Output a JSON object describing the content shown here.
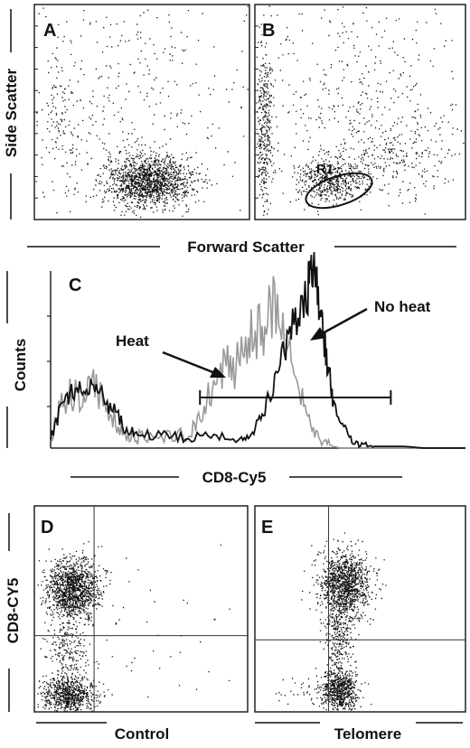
{
  "chart_data": [
    {
      "panel": "A",
      "type": "scatter",
      "ylabel": "Side Scatter",
      "xlabel": "Forward Scatter",
      "populations": [
        {
          "center": [
            0.53,
            0.18
          ],
          "spread": [
            0.1,
            0.06
          ],
          "count": 1400
        },
        {
          "center": [
            0.45,
            0.55
          ],
          "spread": [
            0.3,
            0.28
          ],
          "count": 420
        },
        {
          "center": [
            0.12,
            0.45
          ],
          "spread": [
            0.04,
            0.15
          ],
          "count": 90
        }
      ]
    },
    {
      "panel": "B",
      "type": "scatter",
      "gate_label": "R1",
      "populations": [
        {
          "center": [
            0.35,
            0.18
          ],
          "spread": [
            0.08,
            0.05
          ],
          "count": 500
        },
        {
          "center": [
            0.04,
            0.4
          ],
          "spread": [
            0.02,
            0.18
          ],
          "count": 350
        },
        {
          "center": [
            0.65,
            0.3
          ],
          "spread": [
            0.14,
            0.1
          ],
          "count": 260
        },
        {
          "center": [
            0.45,
            0.6
          ],
          "spread": [
            0.3,
            0.25
          ],
          "count": 420
        }
      ]
    },
    {
      "panel": "C",
      "type": "line",
      "ylabel": "Counts",
      "xlabel": "CD8-Cy5",
      "xlim": [
        0,
        100
      ],
      "ylim": [
        0,
        100
      ],
      "series": [
        {
          "name": "No heat",
          "color": "#111111",
          "x": [
            0,
            2,
            4,
            6,
            8,
            10,
            12,
            14,
            16,
            18,
            20,
            22,
            26,
            30,
            34,
            38,
            42,
            46,
            48,
            50,
            52,
            54,
            56,
            58,
            60,
            62,
            63,
            64,
            65,
            66,
            67,
            68,
            70,
            72,
            74,
            76,
            78,
            80,
            85,
            90,
            100
          ],
          "y": [
            5,
            20,
            28,
            35,
            30,
            40,
            32,
            25,
            20,
            10,
            9,
            8,
            8,
            7,
            6,
            7,
            6,
            5,
            8,
            15,
            25,
            38,
            55,
            68,
            80,
            92,
            100,
            96,
            80,
            60,
            45,
            30,
            15,
            6,
            3,
            2,
            1,
            1,
            1,
            0,
            0
          ]
        },
        {
          "name": "Heat",
          "color": "#999999",
          "x": [
            0,
            2,
            4,
            6,
            8,
            10,
            12,
            14,
            16,
            18,
            20,
            22,
            26,
            30,
            34,
            36,
            38,
            40,
            42,
            44,
            46,
            48,
            50,
            52,
            54,
            56,
            58,
            60,
            62,
            64,
            66,
            68,
            70,
            100
          ],
          "y": [
            5,
            22,
            30,
            32,
            28,
            38,
            30,
            22,
            15,
            8,
            7,
            6,
            6,
            6,
            10,
            20,
            30,
            38,
            50,
            45,
            55,
            62,
            68,
            72,
            88,
            70,
            55,
            35,
            15,
            6,
            2,
            1,
            0,
            0
          ]
        }
      ],
      "gate_range": [
        36,
        82
      ],
      "annotations": [
        "Heat",
        "No heat"
      ]
    },
    {
      "panel": "D",
      "type": "scatter",
      "ylabel": "CD8-CY5",
      "xlabel": "Control",
      "quadrant_lines": {
        "x": 0.28,
        "y": 0.37
      },
      "populations": [
        {
          "center": [
            0.18,
            0.6
          ],
          "spread": [
            0.06,
            0.07
          ],
          "count": 1300
        },
        {
          "center": [
            0.16,
            0.08
          ],
          "spread": [
            0.06,
            0.04
          ],
          "count": 700
        },
        {
          "center": [
            0.16,
            0.3
          ],
          "spread": [
            0.05,
            0.1
          ],
          "count": 260
        },
        {
          "center": [
            0.45,
            0.3
          ],
          "spread": [
            0.25,
            0.25
          ],
          "count": 60
        }
      ]
    },
    {
      "panel": "E",
      "type": "scatter",
      "xlabel": "Telomere",
      "quadrant_lines": {
        "x": 0.35,
        "y": 0.35
      },
      "populations": [
        {
          "center": [
            0.42,
            0.62
          ],
          "spread": [
            0.06,
            0.08
          ],
          "count": 1200
        },
        {
          "center": [
            0.4,
            0.1
          ],
          "spread": [
            0.04,
            0.05
          ],
          "count": 650
        },
        {
          "center": [
            0.4,
            0.35
          ],
          "spread": [
            0.03,
            0.1
          ],
          "count": 300
        },
        {
          "center": [
            0.3,
            0.1
          ],
          "spread": [
            0.1,
            0.05
          ],
          "count": 80
        }
      ]
    }
  ]
}
